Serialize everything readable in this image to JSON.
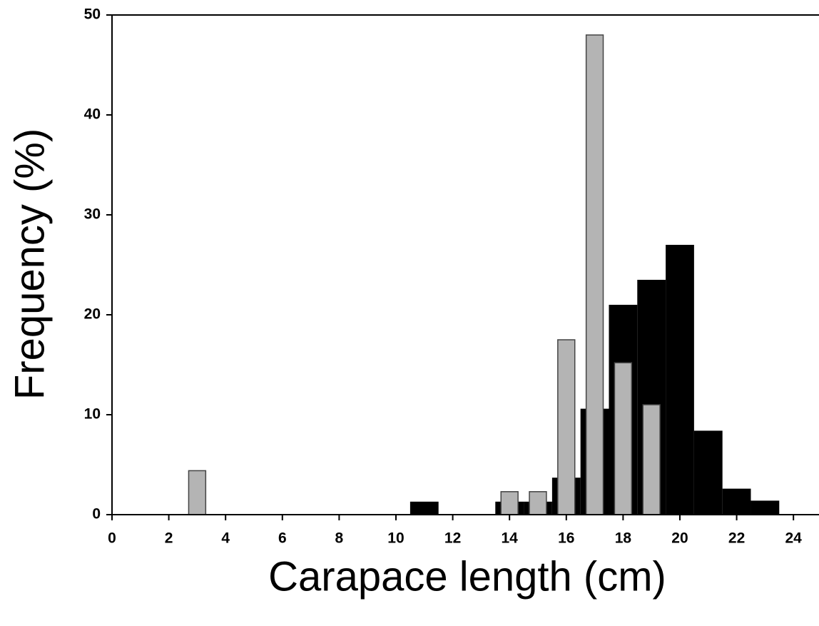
{
  "chart_data": {
    "type": "bar",
    "x_label": "Carapace length (cm)",
    "y_label": "Frequency (%)",
    "series": [
      {
        "color": "#000000",
        "x": [
          11,
          14,
          15,
          16,
          17,
          18,
          19,
          20,
          21,
          22,
          23
        ],
        "values": [
          1.3,
          1.3,
          1.3,
          3.7,
          10.6,
          21,
          23.5,
          27,
          8.4,
          2.6,
          1.4
        ]
      },
      {
        "color": "#b4b4b4",
        "x": [
          3,
          14,
          15,
          16,
          17,
          18,
          19
        ],
        "values": [
          4.4,
          2.3,
          2.3,
          17.5,
          48,
          15.2,
          11
        ]
      }
    ],
    "xlim": [
      0,
      24.9
    ],
    "xticks": [
      0,
      2,
      4,
      6,
      8,
      10,
      12,
      14,
      16,
      18,
      20,
      22,
      24
    ],
    "ylim": [
      0,
      50
    ],
    "yticks": [
      0,
      10,
      20,
      30,
      40,
      50
    ],
    "grid": false
  }
}
